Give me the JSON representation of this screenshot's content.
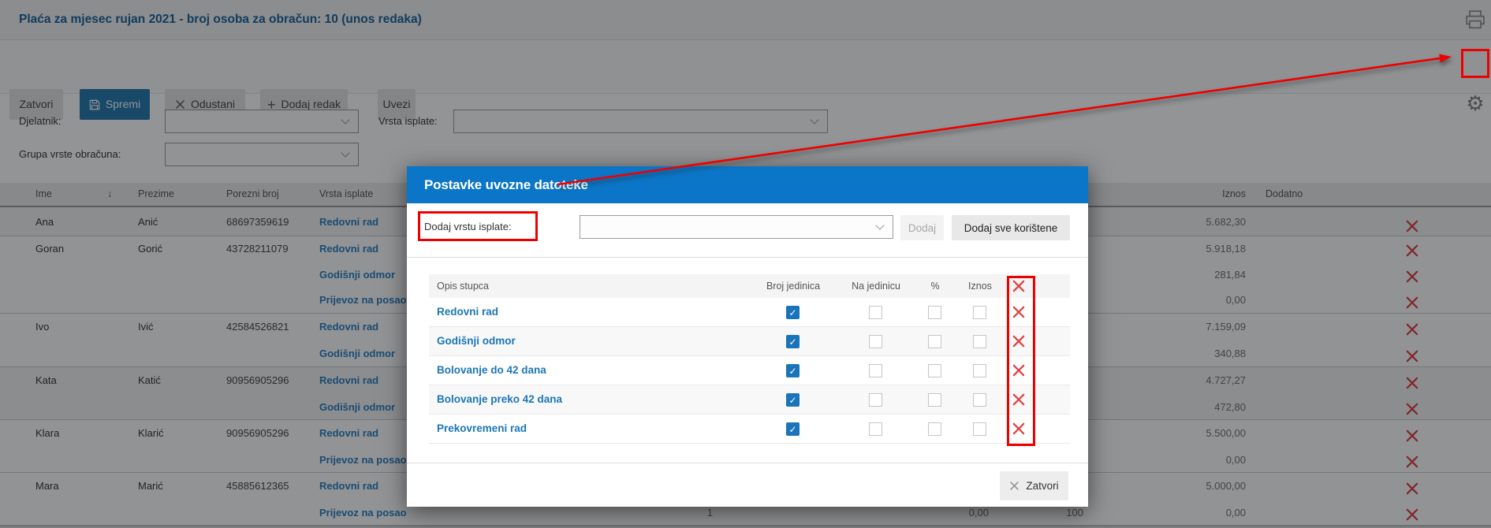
{
  "header": {
    "title": "Plaća za mjesec rujan 2021 - broj osoba za obračun: 10 (unos redaka)"
  },
  "toolbar": {
    "close": "Zatvori",
    "save": "Spremi",
    "cancel": "Odustani",
    "add_row": "Dodaj redak",
    "import": "Uvezi"
  },
  "filters": {
    "djelatnik_label": "Djelatnik:",
    "vrsta_isplate_label": "Vrsta isplate:",
    "grupa_label": "Grupa vrste obračuna:"
  },
  "table": {
    "headers": {
      "ime": "Ime",
      "sort": "↓",
      "prezime": "Prezime",
      "porezni_broj": "Porezni broj",
      "vrsta_isplate": "Vrsta isplate",
      "iznos": "Iznos",
      "dodatno": "Dodatno"
    },
    "rows": [
      {
        "ime": "Ana",
        "prezime": "Anić",
        "porezni_broj": "68697359619",
        "lines": [
          {
            "vrsta": "Redovni rad",
            "iznos": "5.682,30"
          }
        ]
      },
      {
        "ime": "Goran",
        "prezime": "Gorić",
        "porezni_broj": "43728211079",
        "lines": [
          {
            "vrsta": "Redovni rad",
            "iznos": "5.918,18"
          },
          {
            "vrsta": "Godišnji odmor",
            "iznos": "281,84"
          },
          {
            "vrsta": "Prijevoz na posao",
            "iznos": "0,00"
          }
        ]
      },
      {
        "ime": "Ivo",
        "prezime": "Ivić",
        "porezni_broj": "42584526821",
        "lines": [
          {
            "vrsta": "Redovni rad",
            "iznos": "7.159,09"
          },
          {
            "vrsta": "Godišnji odmor",
            "iznos": "340,88"
          }
        ]
      },
      {
        "ime": "Kata",
        "prezime": "Katić",
        "porezni_broj": "90956905296",
        "lines": [
          {
            "vrsta": "Redovni rad",
            "iznos": "4.727,27"
          },
          {
            "vrsta": "Godišnji odmor",
            "iznos": "472,80"
          }
        ]
      },
      {
        "ime": "Klara",
        "prezime": "Klarić",
        "porezni_broj": "90956905296",
        "lines": [
          {
            "vrsta": "Redovni rad",
            "iznos": "5.500,00"
          },
          {
            "vrsta": "Prijevoz na posao",
            "iznos": "0,00"
          }
        ]
      },
      {
        "ime": "Mara",
        "prezime": "Marić",
        "porezni_broj": "45885612365",
        "lines": [
          {
            "vrsta": "Redovni rad",
            "iznos": "5.000,00"
          },
          {
            "vrsta": "Prijevoz na posao",
            "iznos": "0,00",
            "broj_jedinica": "1",
            "na_jedinicu": "0,00",
            "postotak": "100"
          }
        ]
      }
    ]
  },
  "modal": {
    "title": "Postavke uvozne datoteke",
    "add_label": "Dodaj vrstu isplate:",
    "add_button": "Dodaj",
    "add_all_button": "Dodaj sve korištene",
    "close_button": "Zatvori",
    "columns": {
      "opis": "Opis stupca",
      "broj_jedinica": "Broj jedinica",
      "na_jedinicu": "Na jedinicu",
      "postotak": "%",
      "iznos": "Iznos"
    },
    "rows": [
      {
        "opis": "Redovni rad",
        "broj_jedinica": true,
        "na_jedinicu": false,
        "postotak": false,
        "iznos": false
      },
      {
        "opis": "Godišnji odmor",
        "broj_jedinica": true,
        "na_jedinicu": false,
        "postotak": false,
        "iznos": false
      },
      {
        "opis": "Bolovanje do 42 dana",
        "broj_jedinica": true,
        "na_jedinicu": false,
        "postotak": false,
        "iznos": false
      },
      {
        "opis": "Bolovanje preko 42 dana",
        "broj_jedinica": true,
        "na_jedinicu": false,
        "postotak": false,
        "iznos": false
      },
      {
        "opis": "Prekovremeni rad",
        "broj_jedinica": true,
        "na_jedinicu": false,
        "postotak": false,
        "iznos": false
      }
    ]
  },
  "annotations": {
    "color": "#ee0000",
    "arrow_from": "modal-title",
    "arrow_to": "settings-gear-icon",
    "highlighted": [
      "settings-gear-icon",
      "add-payment-type-label",
      "modal-delete-column"
    ]
  },
  "colors": {
    "modal_header_blue": "#0b76c7",
    "link_blue": "#2b7fc0",
    "save_button_blue": "#2779ad",
    "checked_checkbox_blue": "#1a74ba",
    "delete_red": "#e03e3e",
    "annotation_red": "#ee0000",
    "title_blue": "#1d6399"
  }
}
